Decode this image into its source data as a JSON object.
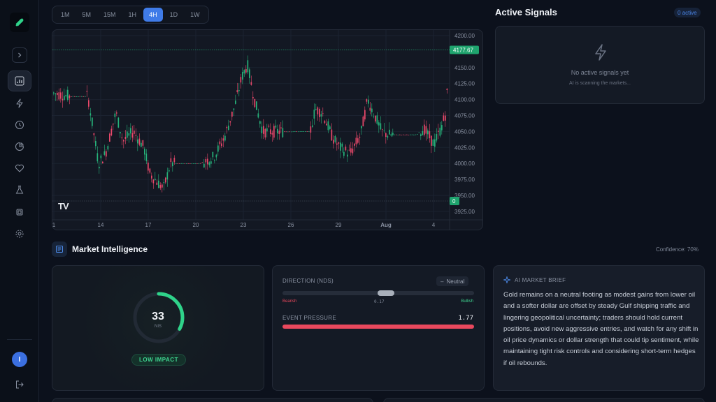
{
  "timeframes": [
    {
      "label": "1M",
      "active": false
    },
    {
      "label": "5M",
      "active": false
    },
    {
      "label": "15M",
      "active": false
    },
    {
      "label": "1H",
      "active": false
    },
    {
      "label": "4H",
      "active": true
    },
    {
      "label": "1D",
      "active": false
    },
    {
      "label": "1W",
      "active": false
    }
  ],
  "chart": {
    "price_ticks": [
      "4200.00",
      "4150.00",
      "4125.00",
      "4100.00",
      "4075.00",
      "4050.00",
      "4025.00",
      "4000.00",
      "3975.00",
      "3950.00",
      "3925.00"
    ],
    "date_ticks": [
      "1",
      "14",
      "17",
      "20",
      "23",
      "26",
      "29",
      "Aug",
      "4"
    ],
    "current_price": "4177.67",
    "zero_label": "0",
    "logo_text": "TV",
    "up_color": "#26b27a",
    "down_color": "#e8486a"
  },
  "signals": {
    "title": "Active Signals",
    "badge": "0 active",
    "empty_title": "No active signals yet",
    "empty_sub": "AI is scanning the markets..."
  },
  "intel": {
    "title": "Market Intelligence",
    "confidence": "Confidence: 70%",
    "gauge": {
      "value": "33",
      "unit": "NIS",
      "fraction": 0.33,
      "badge": "LOW IMPACT"
    },
    "direction": {
      "label": "DIRECTION (NDS)",
      "badge": "Neutral",
      "value": "0.17",
      "bearish": "Bearish",
      "bullish": "Bullish",
      "thumb_fraction": 0.54
    },
    "pressure": {
      "label": "EVENT PRESSURE",
      "value": "1.77"
    },
    "brief": {
      "title": "AI MARKET BRIEF",
      "text": "Gold remains on a neutral footing as modest gains from lower oil and a softer dollar are offset by steady Gulf shipping traffic and lingering geopolitical uncertainty; traders should hold current positions, avoid new aggressive entries, and watch for any shift in oil price dynamics or dollar strength that could tip sentiment, while maintaining tight risk controls and considering short-term hedges if oil rebounds."
    }
  },
  "user": {
    "initial": "I"
  }
}
